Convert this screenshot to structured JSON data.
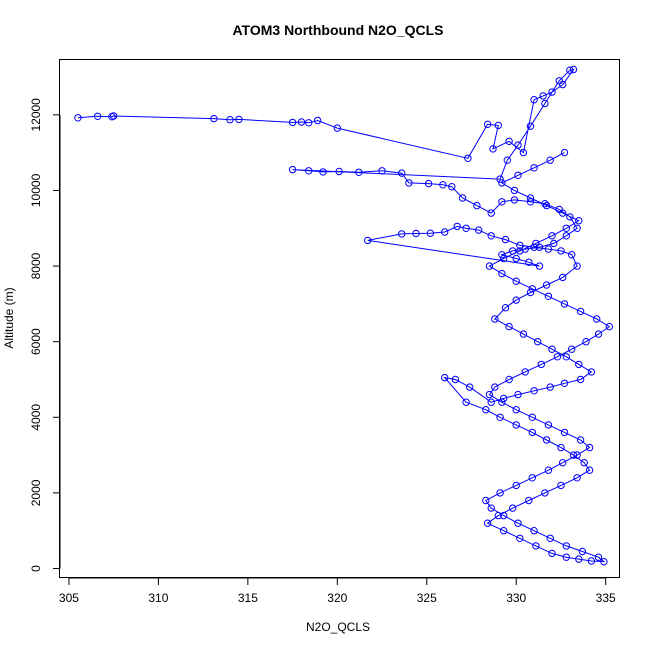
{
  "chart_data": {
    "type": "line",
    "title": "ATOM3 Northbound N2O_QCLS",
    "xlabel": "N2O_QCLS",
    "ylabel": "Altitude (m)",
    "xlim": [
      304.5,
      335.8
    ],
    "ylim": [
      -250,
      13450
    ],
    "xticks": [
      305,
      310,
      315,
      320,
      325,
      330,
      335
    ],
    "yticks": [
      0,
      2000,
      4000,
      6000,
      8000,
      10000,
      12000
    ],
    "grid": false,
    "marker": "open-circle",
    "color": "#0000ff",
    "series": [
      {
        "name": "",
        "x": [
          305.5,
          306.6,
          307.4,
          307.5,
          313.1,
          314.0,
          314.5,
          317.5,
          318.0,
          318.4,
          318.9,
          320.0,
          327.3,
          328.4,
          329.0,
          328.7,
          329.6,
          330.4,
          331.0,
          331.5,
          332.0,
          332.6,
          333.2,
          333.0,
          332.4,
          331.6,
          330.8,
          330.1,
          329.5,
          329.1,
          317.5,
          318.4,
          319.2,
          320.1,
          321.2,
          322.5,
          323.6,
          324.0,
          325.1,
          325.9,
          326.4,
          327.0,
          327.8,
          328.6,
          329.2,
          329.9,
          330.8,
          331.6,
          332.4,
          333.0,
          333.4,
          332.8,
          332.1,
          331.3,
          330.5,
          329.8,
          329.2,
          330.0,
          330.7,
          331.3,
          321.7,
          323.6,
          324.4,
          325.2,
          326.0,
          326.7,
          327.2,
          327.9,
          328.6,
          329.4,
          330.2,
          331.0,
          331.8,
          332.5,
          333.1,
          333.4,
          332.6,
          331.7,
          330.8,
          330.0,
          329.4,
          328.8,
          329.6,
          330.4,
          331.2,
          332.0,
          332.8,
          333.5,
          334.2,
          333.6,
          332.7,
          331.9,
          331.0,
          330.1,
          329.3,
          328.6,
          327.4,
          326.6,
          326.0,
          327.2,
          328.3,
          329.1,
          330.0,
          330.9,
          331.7,
          332.5,
          333.2,
          333.8,
          334.1,
          333.4,
          332.5,
          331.6,
          330.7,
          329.8,
          329.0,
          328.4,
          329.3,
          330.2,
          331.1,
          332.0,
          332.8,
          333.5,
          334.2,
          334.9,
          334.6,
          333.7,
          332.8,
          331.9,
          331.0,
          330.1,
          329.3,
          328.6,
          328.3,
          329.1,
          330.0,
          330.9,
          331.8,
          332.6,
          333.4,
          334.1,
          333.6,
          332.7,
          331.8,
          330.9,
          330.0,
          329.2,
          328.5,
          328.8,
          329.6,
          330.5,
          331.4,
          332.3,
          333.1,
          333.9,
          334.6,
          335.2,
          334.5,
          333.6,
          332.7,
          331.8,
          330.9,
          330.0,
          329.2,
          328.5,
          329.3,
          330.2,
          331.1,
          332.0,
          332.8,
          333.5,
          332.6,
          331.7,
          330.8,
          329.9,
          329.2,
          330.1,
          331.0,
          331.9,
          332.7
        ],
        "y": [
          11920,
          11960,
          11950,
          11970,
          11900,
          11870,
          11880,
          11800,
          11810,
          11790,
          11850,
          11650,
          10850,
          11750,
          11720,
          11100,
          11300,
          11000,
          12400,
          12500,
          12600,
          12800,
          13200,
          13180,
          12900,
          12300,
          11700,
          11200,
          10800,
          10300,
          10550,
          10520,
          10490,
          10500,
          10480,
          10520,
          10460,
          10200,
          10180,
          10150,
          10100,
          9800,
          9600,
          9400,
          9700,
          9750,
          9700,
          9650,
          9500,
          9300,
          9000,
          8800,
          8600,
          8500,
          8450,
          8400,
          8300,
          8200,
          8100,
          8000,
          8680,
          8850,
          8860,
          8870,
          8900,
          9050,
          9000,
          8950,
          8800,
          8700,
          8550,
          8500,
          8450,
          8400,
          8300,
          8000,
          7700,
          7500,
          7300,
          7100,
          6900,
          6600,
          6400,
          6200,
          6000,
          5800,
          5600,
          5400,
          5200,
          5000,
          4900,
          4800,
          4700,
          4600,
          4500,
          4400,
          4800,
          5000,
          5050,
          4400,
          4200,
          4000,
          3800,
          3600,
          3400,
          3200,
          3000,
          2800,
          2600,
          2400,
          2200,
          2000,
          1800,
          1600,
          1400,
          1200,
          1000,
          800,
          600,
          400,
          300,
          250,
          200,
          180,
          300,
          450,
          600,
          800,
          1000,
          1200,
          1400,
          1600,
          1800,
          2000,
          2200,
          2400,
          2600,
          2800,
          3000,
          3200,
          3400,
          3600,
          3800,
          4000,
          4200,
          4400,
          4600,
          4800,
          5000,
          5200,
          5400,
          5600,
          5800,
          6000,
          6200,
          6400,
          6600,
          6800,
          7000,
          7200,
          7400,
          7600,
          7800,
          8000,
          8200,
          8400,
          8600,
          8800,
          9000,
          9200,
          9400,
          9600,
          9800,
          10000,
          10200,
          10400,
          10600,
          10800,
          11000
        ]
      }
    ]
  }
}
